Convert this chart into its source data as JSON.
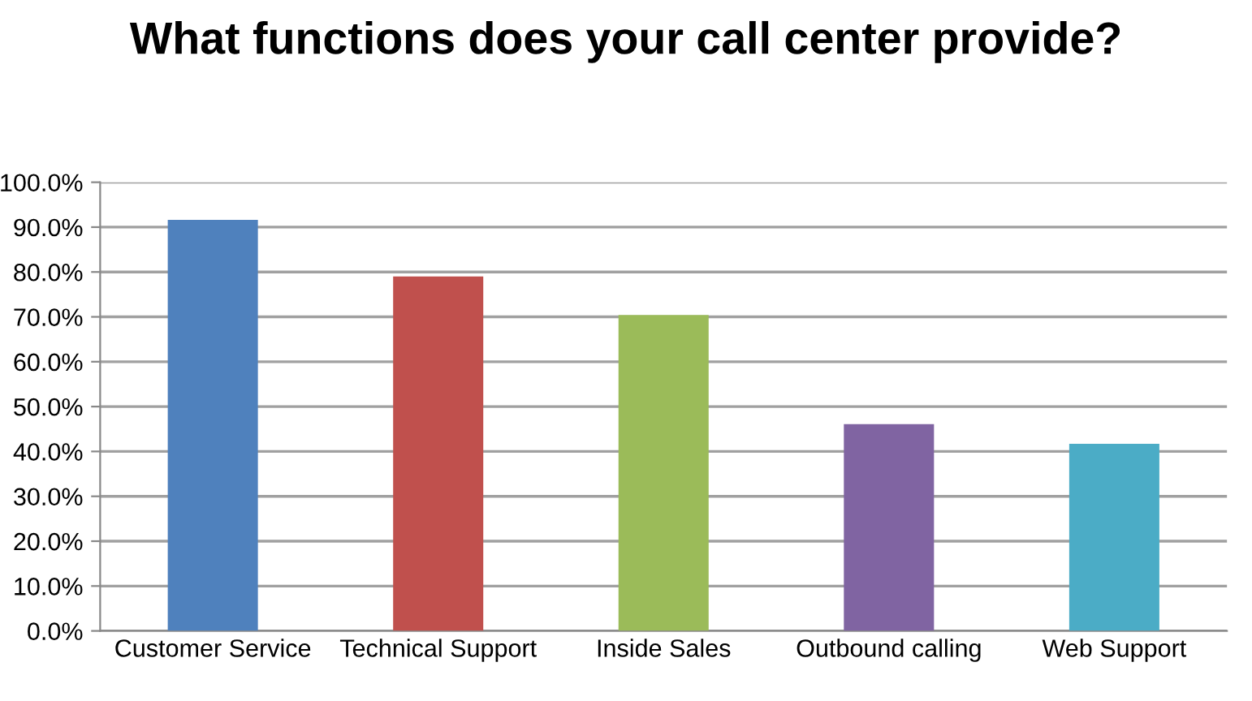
{
  "chart_data": {
    "type": "bar",
    "title": "What functions does your call center provide?",
    "categories": [
      "Customer Service",
      "Technical Support",
      "Inside Sales",
      "Outbound calling",
      "Web Support"
    ],
    "values": [
      91.6,
      79.0,
      70.4,
      46.1,
      41.7
    ],
    "colors": [
      "#4f81bd",
      "#c0504d",
      "#9bbb59",
      "#8064a2",
      "#4bacc6"
    ],
    "ylim": [
      0,
      100
    ],
    "yticks": [
      {
        "value": 0,
        "label": "0.0%"
      },
      {
        "value": 10,
        "label": "10.0%"
      },
      {
        "value": 20,
        "label": "20.0%"
      },
      {
        "value": 30,
        "label": "30.0%"
      },
      {
        "value": 40,
        "label": "40.0%"
      },
      {
        "value": 50,
        "label": "50.0%"
      },
      {
        "value": 60,
        "label": "60.0%"
      },
      {
        "value": 70,
        "label": "70.0%"
      },
      {
        "value": 80,
        "label": "80.0%"
      },
      {
        "value": 90,
        "label": "90.0%"
      },
      {
        "value": 100,
        "label": "100.0%"
      }
    ],
    "grid": "y",
    "legend": false
  }
}
